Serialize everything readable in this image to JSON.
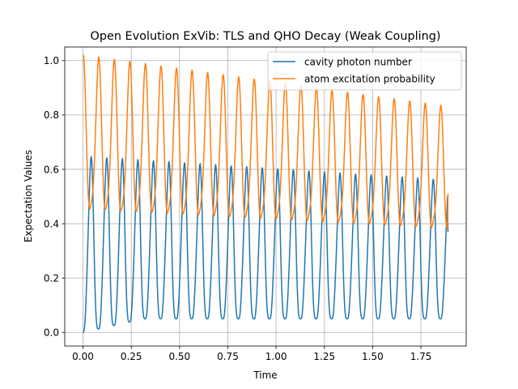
{
  "chart_data": {
    "type": "line",
    "title": "Open Evolution ExVib: TLS and QHO Decay (Weak Coupling)",
    "xlabel": "Time",
    "ylabel": "Expectation Values",
    "xlim": [
      -0.0945,
      1.9845
    ],
    "ylim": [
      -0.05,
      1.05
    ],
    "xticks": [
      0.0,
      0.25,
      0.5,
      0.75,
      1.0,
      1.25,
      1.5,
      1.75
    ],
    "xtick_labels": [
      "0.00",
      "0.25",
      "0.50",
      "0.75",
      "1.00",
      "1.25",
      "1.50",
      "1.75"
    ],
    "yticks": [
      0.0,
      0.2,
      0.4,
      0.6,
      0.8,
      1.0
    ],
    "ytick_labels": [
      "0.0",
      "0.2",
      "0.4",
      "0.6",
      "0.8",
      "1.0"
    ],
    "grid": true,
    "legend_position": "upper right",
    "series": [
      {
        "name": "cavity photon number",
        "color": "#1f77b4",
        "period": 0.0805,
        "x_range": [
          0.0,
          1.89
        ],
        "min_start": 0.0,
        "min_end": 0.05,
        "peak_start": 0.64,
        "peak_end": 0.55,
        "end_value": 0.37
      },
      {
        "name": "atom excitation probability",
        "color": "#ff7f0e",
        "period": 0.0805,
        "x_range": [
          0.0,
          1.89
        ],
        "max_start": 1.0,
        "max_end": 0.81,
        "min_start": 0.45,
        "min_end": 0.38,
        "end_value": 0.51
      }
    ]
  }
}
